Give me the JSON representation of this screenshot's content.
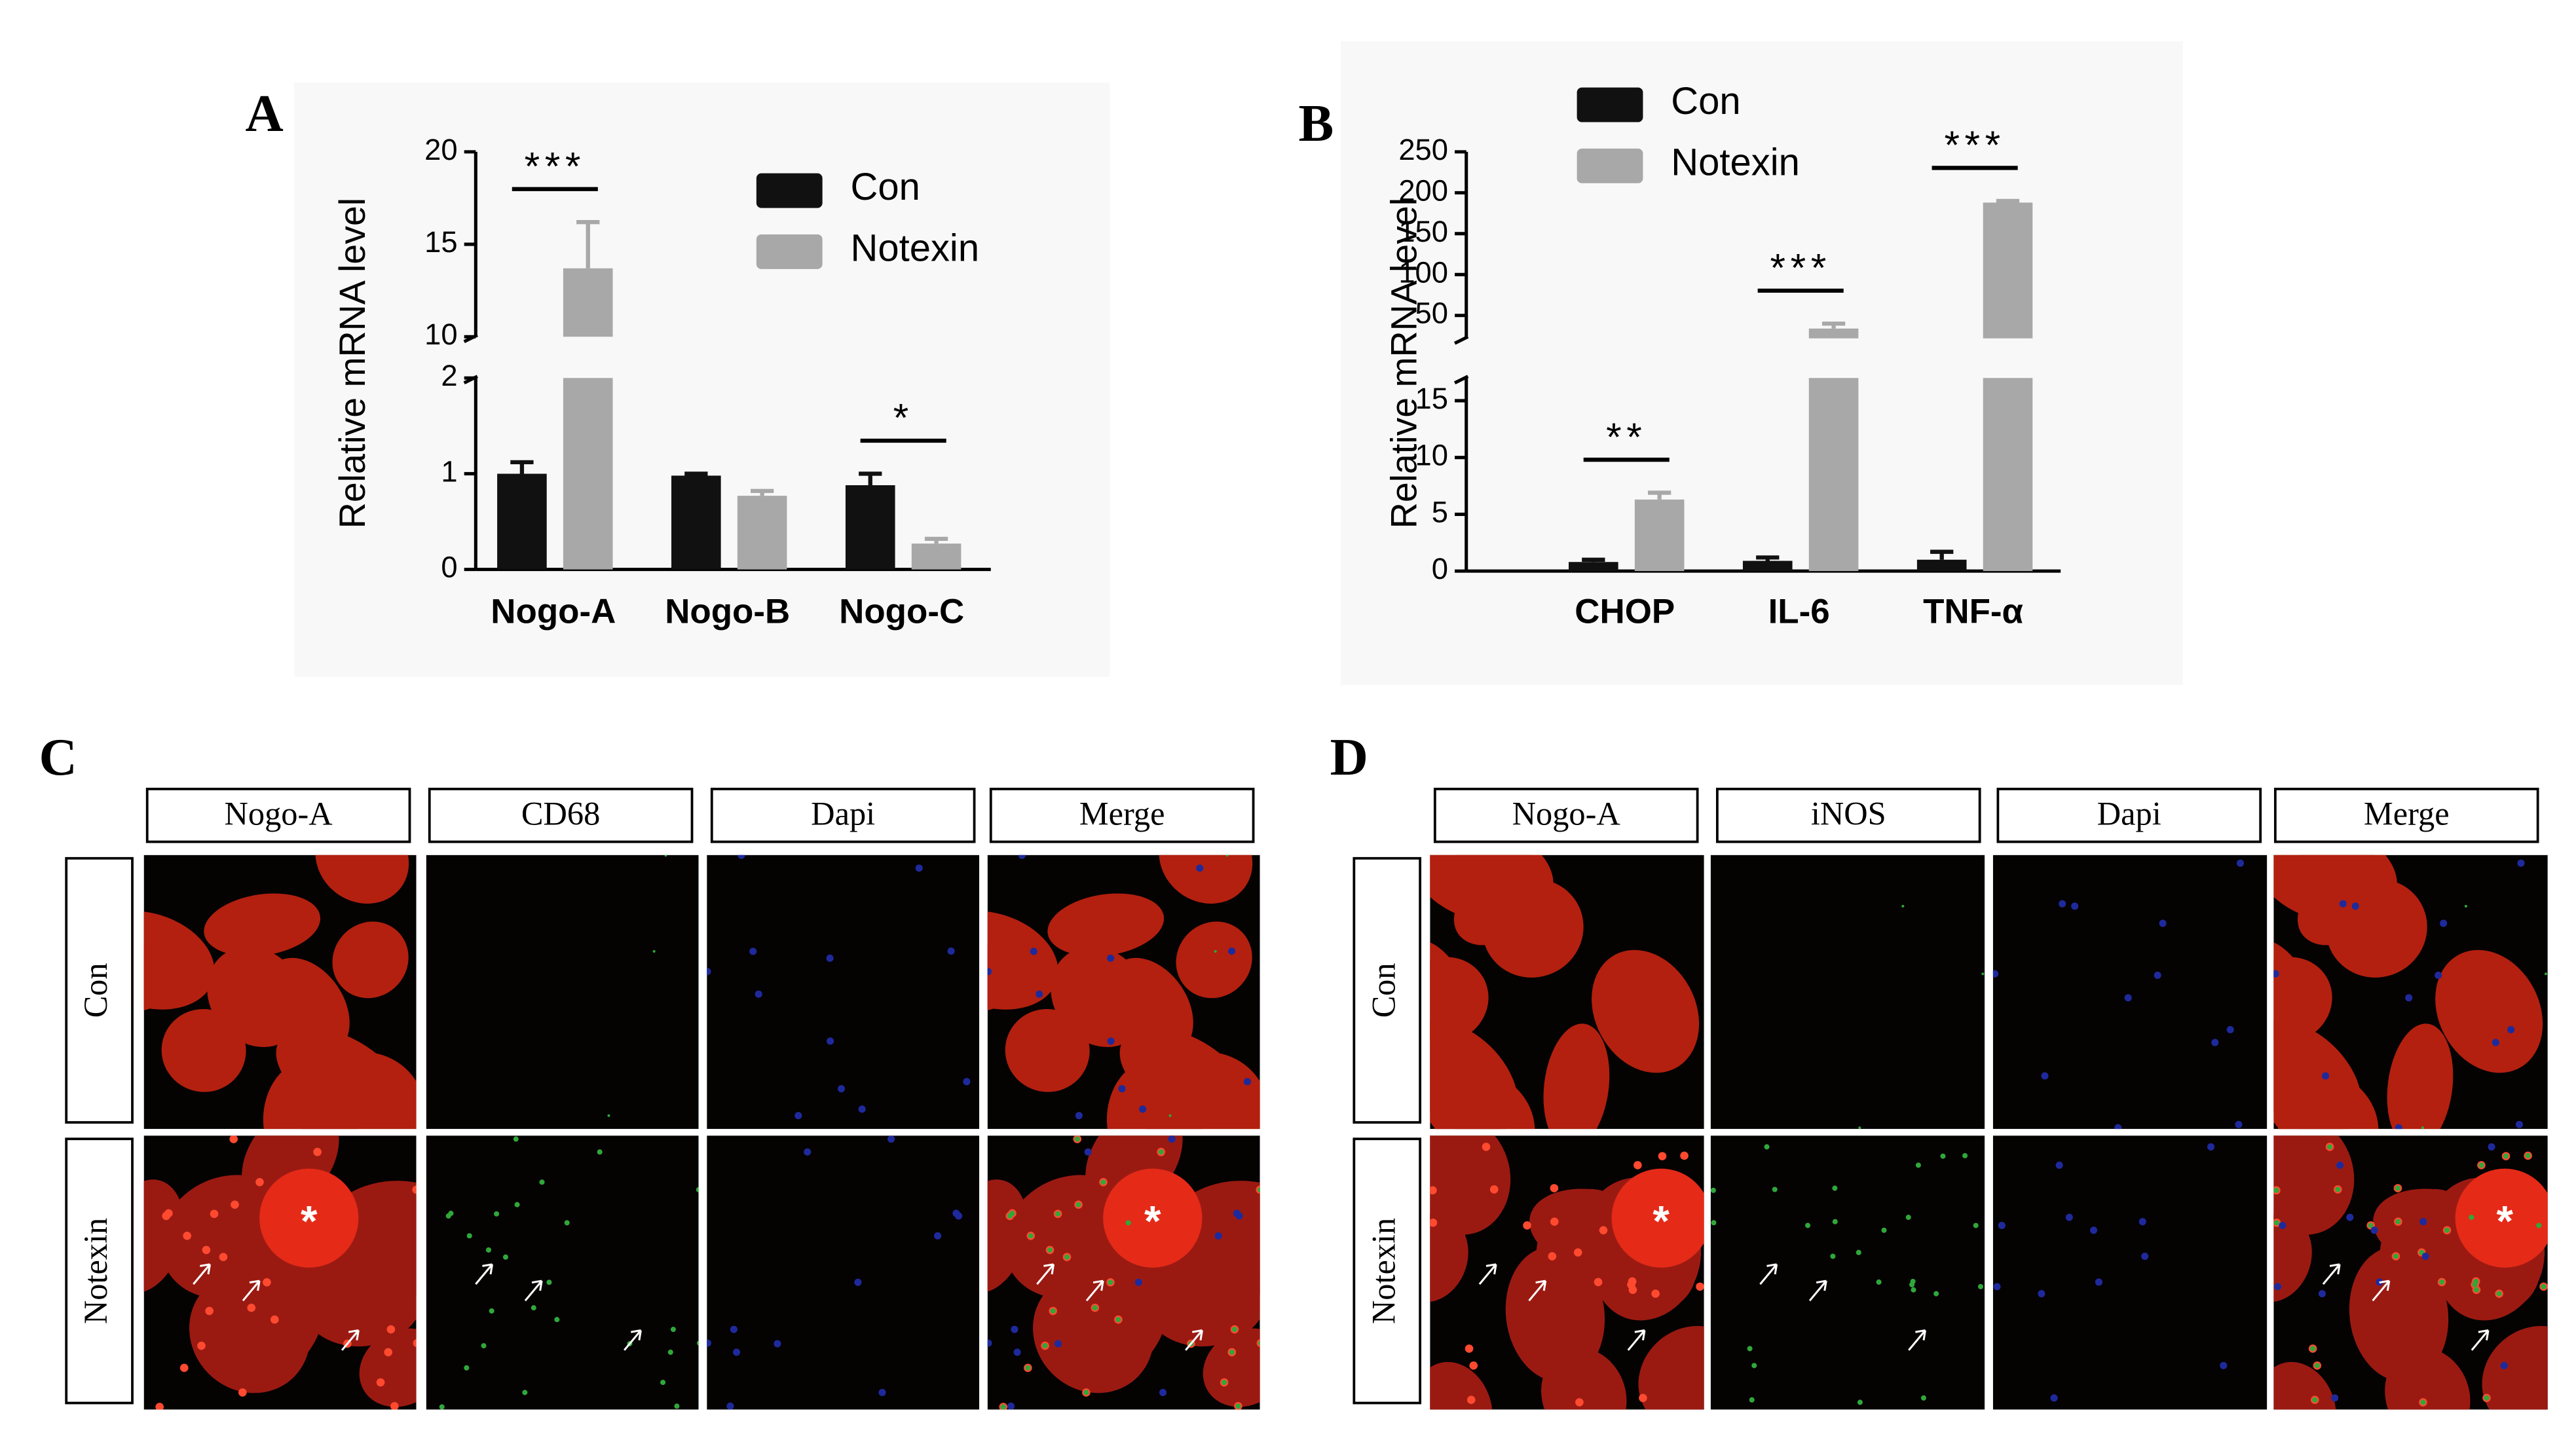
{
  "chart_data": [
    {
      "type": "bar",
      "panel": "A",
      "ylabel": "Relative mRNA level",
      "categories": [
        "Nogo-A",
        "Nogo-B",
        "Nogo-C"
      ],
      "series": [
        {
          "name": "Con",
          "color": "#111111",
          "values": [
            1.0,
            0.98,
            0.88
          ],
          "errors": [
            0.12,
            0.02,
            0.12
          ]
        },
        {
          "name": "Notexin",
          "color": "#a8a8a8",
          "values": [
            13.7,
            0.77,
            0.27
          ],
          "errors": [
            2.5,
            0.05,
            0.05
          ]
        }
      ],
      "significance": [
        "***",
        null,
        "*"
      ],
      "ylim": [
        0,
        20
      ],
      "ybreak": [
        2,
        10
      ],
      "yticks": [
        0,
        1,
        2,
        10,
        15,
        20
      ]
    },
    {
      "type": "bar",
      "panel": "B",
      "ylabel": "Relative mRNA level",
      "categories": [
        "CHOP",
        "IL-6",
        "TNF-α"
      ],
      "series": [
        {
          "name": "Con",
          "color": "#111111",
          "values": [
            0.8,
            0.9,
            1.0
          ],
          "errors": [
            0.2,
            0.3,
            0.7
          ]
        },
        {
          "name": "Notexin",
          "color": "#a8a8a8",
          "values": [
            6.3,
            34,
            188
          ],
          "errors": [
            0.6,
            6,
            2
          ]
        }
      ],
      "significance": [
        "**",
        "***",
        "***"
      ],
      "ylim": [
        0,
        250
      ],
      "ybreak": [
        17,
        22
      ],
      "yticks": [
        0,
        5,
        10,
        15,
        50,
        100,
        150,
        200,
        250
      ]
    }
  ],
  "image_panels": [
    {
      "label": "C",
      "columns": [
        "Nogo-A",
        "CD68",
        "Dapi",
        "Merge"
      ],
      "rows": [
        "Con",
        "Notexin"
      ],
      "marker": "*"
    },
    {
      "label": "D",
      "columns": [
        "Nogo-A",
        "iNOS",
        "Dapi",
        "Merge"
      ],
      "rows": [
        "Con",
        "Notexin"
      ],
      "marker": "*"
    }
  ]
}
